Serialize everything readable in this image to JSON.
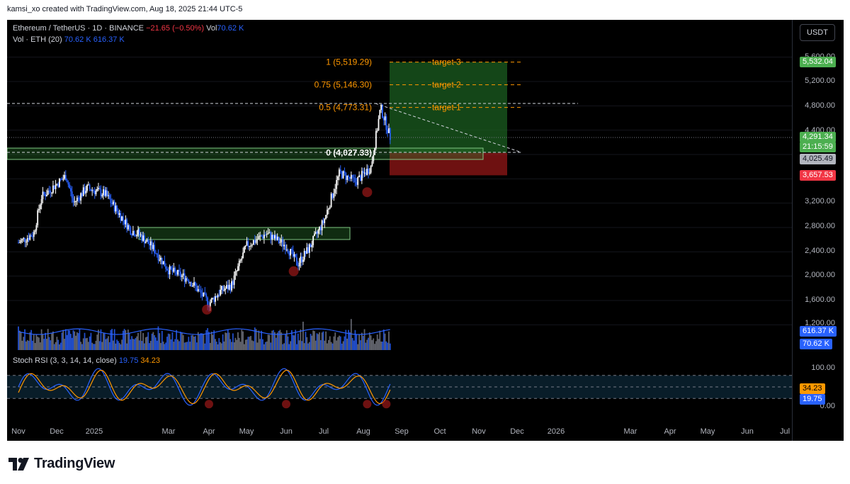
{
  "top_caption": "kamsi_xo created with TradingView.com, Aug 18, 2025 21:44 UTC-5",
  "header": {
    "symbol": "Ethereum / TetherUS · 1D · BINANCE",
    "change": "−21.65 (−0.50%)",
    "vol_label": "Vol",
    "vol_value": "70.62 K",
    "vol_line_label": "Vol · ETH (20)",
    "vol_line_v1": "70.62 K",
    "vol_line_v2": "616.37 K"
  },
  "currency_button": "USDT",
  "price_ticks": [
    "5,600.00",
    "5,200.00",
    "4,800.00",
    "4,400.00",
    "3,200.00",
    "2,800.00",
    "2,400.00",
    "2,000.00",
    "1,600.00",
    "1,200.00"
  ],
  "price_badges": {
    "target": "5,532.04",
    "current": "4,291.34",
    "countdown": "21:15:59",
    "entry": "4,025.49",
    "stop": "3,657.53",
    "vol_ma": "616.37 K",
    "vol": "70.62 K"
  },
  "fib_labels": [
    "1 (5,519.29)",
    "0.75 (5,146.30)",
    "0.5 (4,773.31)",
    "0 (4,027.33)"
  ],
  "target_labels": [
    "target 3",
    "target 2",
    "target 1"
  ],
  "stoch": {
    "label": "Stoch RSI (3, 3, 14, 14, close)",
    "k": "19.75",
    "d": "34.23",
    "ticks": [
      "100.00",
      "0.00"
    ]
  },
  "x_axis": [
    "Nov",
    "Dec",
    "2025",
    "Mar",
    "Apr",
    "May",
    "Jun",
    "Jul",
    "Aug",
    "Sep",
    "Oct",
    "Nov",
    "Dec",
    "2026",
    "Mar",
    "Apr",
    "May",
    "Jun",
    "Jul"
  ],
  "brand": "TradingView",
  "colors": {
    "bg": "#000000",
    "bull": "#ffffff",
    "bear": "#2962ff",
    "fib": "#ff9800",
    "zone": "#4caf50",
    "stop": "#f23645",
    "k": "#2962ff",
    "d": "#ff9800"
  },
  "chart_data": {
    "type": "line",
    "title": "Ethereum / TetherUS · 1D · BINANCE",
    "xlabel": "",
    "ylabel": "",
    "ylim": [
      1200,
      5600
    ],
    "x": [
      "2024-11",
      "2024-12",
      "2025-01",
      "2025-02",
      "2025-03",
      "2025-04",
      "2025-05",
      "2025-06",
      "2025-07",
      "2025-08-14",
      "2025-08-18"
    ],
    "series": [
      {
        "values": [
          2550,
          3650,
          3300,
          2700,
          2100,
          1550,
          2500,
          2450,
          3700,
          4770,
          4291
        ]
      }
    ],
    "levels": {
      "fib_1": 5519.29,
      "fib_0_75": 5146.3,
      "fib_0_5": 4773.31,
      "fib_0": 4027.33,
      "stop": 3657.53,
      "current": 4291.34,
      "entry": 4025.49
    },
    "stoch_rsi": {
      "k": 19.75,
      "d": 34.23
    }
  }
}
